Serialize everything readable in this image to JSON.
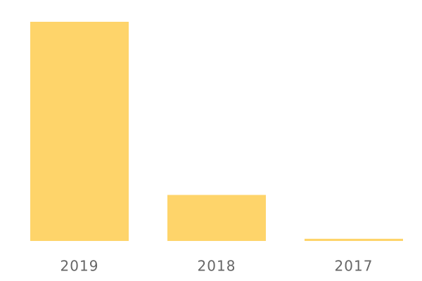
{
  "chart_data": {
    "type": "bar",
    "categories": [
      "2019",
      "2018",
      "2017"
    ],
    "values": [
      100,
      21,
      1
    ],
    "color": "#fed46a",
    "ylim": [
      0,
      100
    ]
  }
}
